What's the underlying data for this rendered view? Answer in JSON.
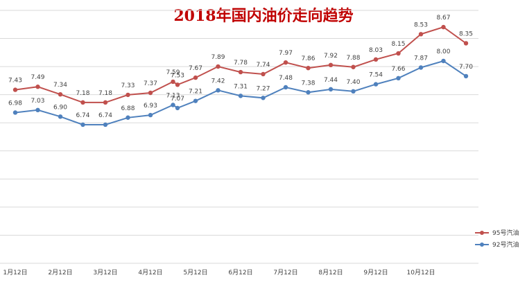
{
  "chart_data": {
    "type": "line",
    "title": "2018年国内油价走向趋势",
    "x": [
      0,
      1,
      2,
      3,
      4,
      5,
      6,
      7,
      8,
      9,
      10,
      11,
      12,
      13,
      14,
      15,
      16,
      17,
      18,
      19,
      20
    ],
    "xticks": [
      {
        "pos": 0,
        "label": "1月12日"
      },
      {
        "pos": 2,
        "label": "2月12日"
      },
      {
        "pos": 4,
        "label": "3月12日"
      },
      {
        "pos": 6,
        "label": "4月12日"
      },
      {
        "pos": 8,
        "label": "5月12日"
      },
      {
        "pos": 10,
        "label": "6月12日"
      },
      {
        "pos": 12,
        "label": "7月12日"
      },
      {
        "pos": 14,
        "label": "8月12日"
      },
      {
        "pos": 16,
        "label": "9月12日"
      },
      {
        "pos": 18,
        "label": "10月12日"
      }
    ],
    "series": [
      {
        "name": "95号汽油",
        "color": "#c0504d",
        "x": [
          0,
          1,
          2,
          3,
          4,
          5,
          6,
          7,
          7.2,
          8,
          9,
          10,
          11,
          12,
          13,
          14,
          15,
          16,
          17,
          18,
          19,
          20
        ],
        "values": [
          7.43,
          7.49,
          7.34,
          7.18,
          7.18,
          7.33,
          7.37,
          7.59,
          7.53,
          7.67,
          7.89,
          7.78,
          7.74,
          7.97,
          7.86,
          7.92,
          7.88,
          8.03,
          8.15,
          8.53,
          8.67,
          8.35
        ],
        "labels": [
          "7.43",
          "7.49",
          "7.34",
          "7.18",
          "7.18",
          "7.33",
          "7.37",
          "7.59",
          "7.53",
          "7.67",
          "7.89",
          "7.78",
          "7.74",
          "7.97",
          "7.86",
          "7.92",
          "7.88",
          "8.03",
          "8.15",
          "8.53",
          "8.67",
          "8.35"
        ]
      },
      {
        "name": "92号汽油",
        "color": "#4f81bd",
        "x": [
          0,
          1,
          2,
          3,
          4,
          5,
          6,
          7,
          7.2,
          8,
          9,
          10,
          11,
          12,
          13,
          14,
          15,
          16,
          17,
          18,
          19,
          20
        ],
        "values": [
          6.98,
          7.03,
          6.9,
          6.74,
          6.74,
          6.88,
          6.93,
          7.13,
          7.07,
          7.21,
          7.42,
          7.31,
          7.27,
          7.48,
          7.38,
          7.44,
          7.4,
          7.54,
          7.66,
          7.87,
          8.0,
          7.7
        ],
        "labels": [
          "6.98",
          "7.03",
          "6.90",
          "6.74",
          "6.74",
          "6.88",
          "6.93",
          "7.13",
          "7.07",
          "7.21",
          "7.42",
          "7.31",
          "7.27",
          "7.48",
          "7.38",
          "7.44",
          "7.40",
          "7.54",
          "7.66",
          "7.87",
          "8.00",
          "7.70"
        ]
      }
    ],
    "ylim": [
      4.0,
      9.0
    ],
    "grid": true,
    "legend_position": "bottom-right"
  }
}
